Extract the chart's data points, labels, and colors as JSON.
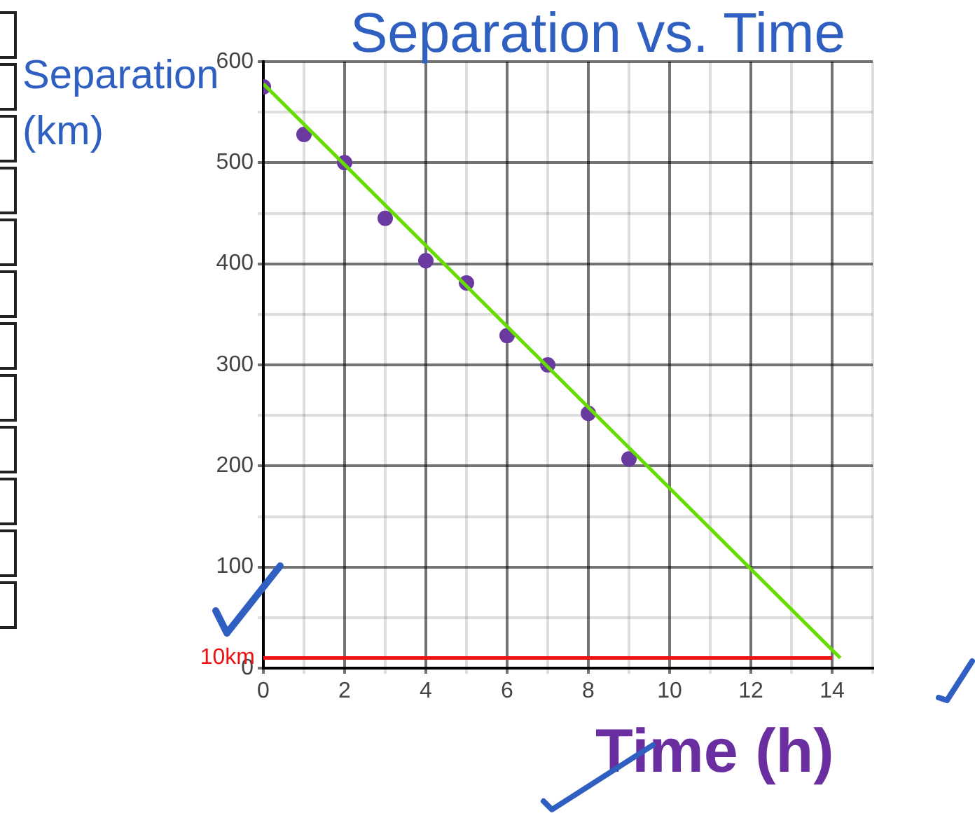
{
  "chart_data": {
    "type": "scatter",
    "title": "Separation vs. Time",
    "xlabel": "Time (h)",
    "ylabel": "Separation (km)",
    "xlim": [
      0,
      15
    ],
    "xticks": [
      0,
      {
        "value": 1,
        "label": null
      },
      2,
      {
        "value": 3,
        "label": null
      },
      4,
      {
        "value": 5,
        "label": null
      },
      6,
      {
        "value": 7,
        "label": null
      },
      8,
      {
        "value": 9,
        "label": null
      },
      10,
      {
        "value": 11,
        "label": null
      },
      12,
      {
        "value": 13,
        "label": null
      },
      14,
      {
        "value": 15,
        "label": null
      }
    ],
    "ylim": [
      0,
      600
    ],
    "yticks": [
      0,
      {
        "value": 50,
        "label": null
      },
      100,
      {
        "value": 150,
        "label": null
      },
      200,
      {
        "value": 250,
        "label": null
      },
      300,
      {
        "value": 350,
        "label": null
      },
      400,
      {
        "value": 450,
        "label": null
      },
      500,
      {
        "value": 550,
        "label": null
      },
      600
    ],
    "grid": true,
    "legend": false,
    "series": [
      {
        "marker": "circle",
        "color": "#6a3aa0",
        "x": [
          0,
          1,
          2,
          3,
          4,
          5,
          6,
          7,
          8,
          9
        ],
        "values": [
          575,
          528,
          500,
          445,
          403,
          381,
          329,
          300,
          252,
          207
        ]
      },
      {
        "type": "line",
        "marker": "none",
        "color": "#66dd00",
        "x": [
          0,
          14.2
        ],
        "values": [
          578,
          10
        ]
      },
      {
        "type": "line",
        "marker": "none",
        "color": "#ee1111",
        "x": [
          0,
          14
        ],
        "values": [
          10,
          10
        ]
      }
    ],
    "annotations": [
      {
        "text": "10km",
        "x": 0,
        "y": 10
      }
    ]
  }
}
